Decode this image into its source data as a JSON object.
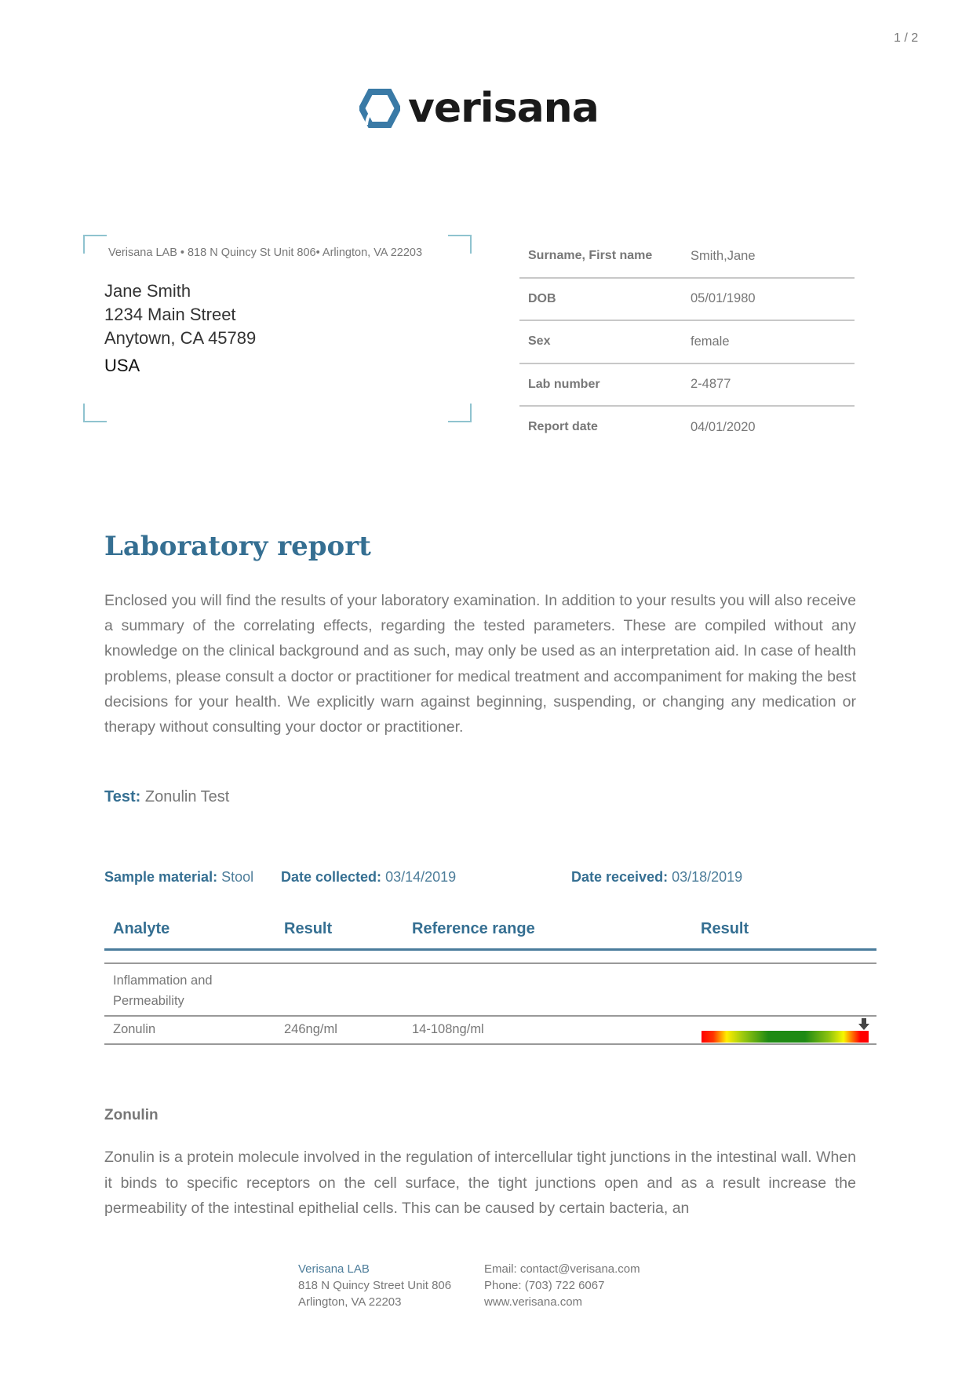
{
  "page_number": "1 / 2",
  "brand": {
    "name": "verisana",
    "logo_color": "#3a7aa6"
  },
  "sender_line": "Verisana LAB • 818 N Quincy St Unit 806• Arlington, VA 22203",
  "recipient": {
    "name": "Jane Smith",
    "street": "1234 Main Street",
    "city": "Anytown, CA 45789",
    "country": "USA"
  },
  "patient_info": [
    {
      "label": "Surname, First name",
      "value": "Smith,Jane"
    },
    {
      "label": "DOB",
      "value": "05/01/1980"
    },
    {
      "label": "Sex",
      "value": "female"
    },
    {
      "label": "Lab number",
      "value": "2-4877"
    },
    {
      "label": "Report date",
      "value": "04/01/2020"
    }
  ],
  "title": "Laboratory report",
  "intro": "Enclosed you will find the results of your laboratory examination. In addition to your results you will also receive a summary of the correlating effects, regarding the tested parameters. These are compiled without any knowledge on the clinical background and as such, may only be used as an interpretation aid. In case of health problems, please consult a doctor or practitioner for medical treatment and accompaniment for making the best decisions for your health. We explicitly warn against beginning, suspending, or changing any medication or therapy without consulting your doctor or practitioner.",
  "test": {
    "label": "Test:",
    "value": "Zonulin Test"
  },
  "sample": {
    "material_label": "Sample material:",
    "material": "Stool",
    "collected_label": "Date collected:",
    "collected": "03/14/2019",
    "received_label": "Date received:",
    "received": "03/18/2019"
  },
  "results_table": {
    "headers": [
      "Analyte",
      "Result",
      "Reference range",
      "Result"
    ],
    "group": "Inflammation and Permeability",
    "rows": [
      {
        "analyte": "Zonulin",
        "result": "246ng/ml",
        "reference": "14-108ng/ml",
        "scale_marker_fraction": 0.97
      }
    ]
  },
  "colors": {
    "accent": "#356f92",
    "scale": [
      "#ff0000",
      "#ffee00",
      "#1e8a14",
      "#ffee00",
      "#ff0000"
    ]
  },
  "section": {
    "heading": "Zonulin",
    "text": "Zonulin is a protein molecule involved in the regulation of intercellular tight junctions in the intestinal wall. When it binds to specific receptors on the cell surface, the tight junctions open and as a result increase the permeability of the intestinal epithelial cells. This can be caused by  certain bacteria, an"
  },
  "footer": {
    "lab_name": "Verisana LAB",
    "street": "818 N Quincy Street Unit 806",
    "city": "Arlington, VA 22203",
    "email": "Email: contact@verisana.com",
    "phone": "Phone: (703) 722 6067",
    "website": "www.verisana.com"
  }
}
